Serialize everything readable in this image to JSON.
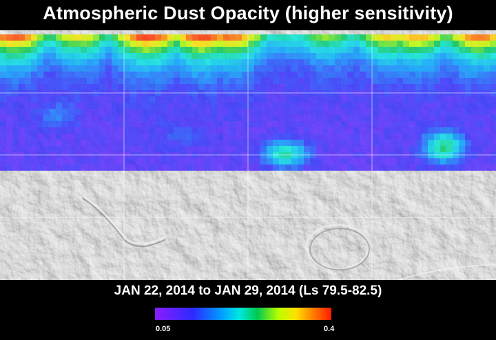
{
  "title": "Atmospheric Dust Opacity (higher sensitivity)",
  "date_range": "JAN 22, 2014 to JAN 29, 2014 (Ls 79.5-82.5)",
  "colorbar": {
    "min_label": "0.05",
    "max_label": "0.4",
    "min_value": 0.05,
    "max_value": 0.4,
    "colors": [
      "#8a1cff",
      "#2b2bff",
      "#00a0ff",
      "#00e8e0",
      "#00c850",
      "#b8ff00",
      "#ffe000",
      "#ff7a00",
      "#ff1a00"
    ]
  },
  "map": {
    "basemap_description_colors": {
      "relief": "#c8c8c8"
    },
    "coverage": "northern half"
  }
}
